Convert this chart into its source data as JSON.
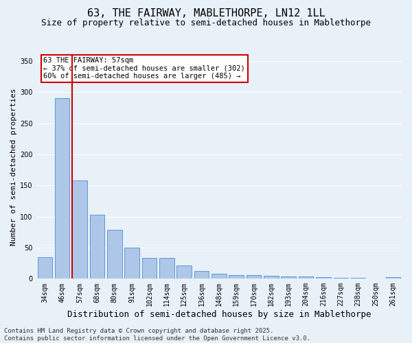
{
  "title": "63, THE FAIRWAY, MABLETHORPE, LN12 1LL",
  "subtitle": "Size of property relative to semi-detached houses in Mablethorpe",
  "xlabel": "Distribution of semi-detached houses by size in Mablethorpe",
  "ylabel": "Number of semi-detached properties",
  "categories": [
    "34sqm",
    "46sqm",
    "57sqm",
    "68sqm",
    "80sqm",
    "91sqm",
    "102sqm",
    "114sqm",
    "125sqm",
    "136sqm",
    "148sqm",
    "159sqm",
    "170sqm",
    "182sqm",
    "193sqm",
    "204sqm",
    "216sqm",
    "227sqm",
    "238sqm",
    "250sqm",
    "261sqm"
  ],
  "values": [
    35,
    290,
    158,
    103,
    79,
    50,
    33,
    33,
    21,
    12,
    8,
    6,
    6,
    5,
    4,
    4,
    3,
    1,
    1,
    0,
    3
  ],
  "bar_color": "#aec6e8",
  "bar_edge_color": "#5b9bd5",
  "highlight_index": 2,
  "highlight_line_color": "#cc0000",
  "annotation_text": "63 THE FAIRWAY: 57sqm\n← 37% of semi-detached houses are smaller (302)\n60% of semi-detached houses are larger (485) →",
  "annotation_box_color": "#ffffff",
  "annotation_box_edge": "#cc0000",
  "ylim": [
    0,
    360
  ],
  "yticks": [
    0,
    50,
    100,
    150,
    200,
    250,
    300,
    350
  ],
  "footer": "Contains HM Land Registry data © Crown copyright and database right 2025.\nContains public sector information licensed under the Open Government Licence v3.0.",
  "bg_color": "#e8f0f8",
  "plot_bg_color": "#e8f0f8",
  "grid_color": "#ffffff",
  "title_fontsize": 11,
  "subtitle_fontsize": 9,
  "xlabel_fontsize": 9,
  "ylabel_fontsize": 8,
  "tick_fontsize": 7,
  "footer_fontsize": 6.5,
  "annotation_fontsize": 7.5
}
